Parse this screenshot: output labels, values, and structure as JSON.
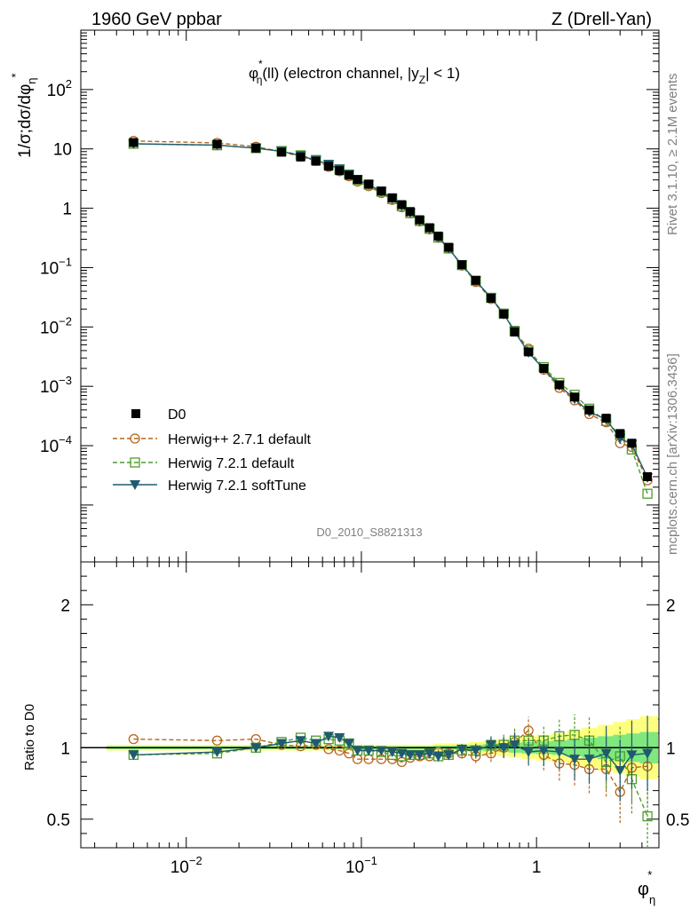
{
  "header": {
    "left": "1960 GeV ppbar",
    "right": "Z (Drell-Yan)"
  },
  "plot_title": {
    "main": "φ",
    "sup": "*",
    "sub": "η",
    "rest": "(ll) (electron channel, |y",
    "sub2": "Z",
    "tail": "| < 1)"
  },
  "axes": {
    "ylabel_main": "1/σ;dσ/dφ",
    "ylabel_sub": "η",
    "ylabel_sup": "*",
    "ratio_ylabel": "Ratio to D0",
    "xlabel_main": "φ",
    "xlabel_sub": "η",
    "xlabel_sup": "*"
  },
  "side_labels": {
    "rivet": "Rivet 3.1.10, ≥ 2.1M events",
    "mcplots": "mcplots.cern.ch [arXiv:1306.3436]"
  },
  "watermark": "D0_2010_S8821313",
  "legend": [
    {
      "label": "D0",
      "color": "#000000",
      "style": "data"
    },
    {
      "label": "Herwig++ 2.7.1 default",
      "color": "#b5651d",
      "style": "circle"
    },
    {
      "label": "Herwig 7.2.1 default",
      "color": "#4d9e2a",
      "style": "square"
    },
    {
      "label": "Herwig 7.2.1 softTune",
      "color": "#1f5b6e",
      "style": "triangle"
    }
  ],
  "chart_data": {
    "type": "line",
    "x_scale": "log",
    "y_scale": "log",
    "xlim": [
      0.0025,
      5.0
    ],
    "ylim": [
      1.1e-06,
      1000
    ],
    "ratio_ylim": [
      0.3,
      2.3
    ],
    "x_tick_labels": [
      "10^-2",
      "10^-1",
      "1"
    ],
    "y_tick_labels": [
      "10^-4",
      "10^-3",
      "10^-2",
      "10^-1",
      "1",
      "10",
      "10^2"
    ],
    "ratio_tick_labels": [
      "0.5",
      "1",
      "2"
    ],
    "x": [
      0.005,
      0.015,
      0.025,
      0.035,
      0.045,
      0.055,
      0.065,
      0.075,
      0.085,
      0.095,
      0.11,
      0.13,
      0.15,
      0.17,
      0.19,
      0.215,
      0.245,
      0.275,
      0.315,
      0.375,
      0.45,
      0.55,
      0.65,
      0.75,
      0.9,
      1.1,
      1.35,
      1.65,
      2.0,
      2.5,
      3.0,
      3.5,
      4.3
    ],
    "series": [
      {
        "name": "D0",
        "values": [
          12.8,
          12.0,
          10.3,
          8.8,
          7.3,
          6.2,
          5.1,
          4.3,
          3.6,
          3.05,
          2.55,
          1.95,
          1.5,
          1.15,
          0.88,
          0.64,
          0.47,
          0.34,
          0.22,
          0.112,
          0.061,
          0.0305,
          0.0165,
          0.0082,
          0.0038,
          0.002,
          0.00106,
          0.00066,
          0.0004,
          0.00029,
          0.00016,
          0.00011,
          3e-05
        ]
      },
      {
        "name": "Herwig++ 2.7.1 default",
        "values": [
          13.6,
          12.6,
          10.9,
          9.0,
          7.4,
          6.3,
          5.0,
          4.2,
          3.45,
          2.8,
          2.35,
          1.8,
          1.38,
          1.04,
          0.82,
          0.6,
          0.44,
          0.33,
          0.21,
          0.108,
          0.057,
          0.0295,
          0.0165,
          0.0085,
          0.0043,
          0.0019,
          0.00094,
          0.00058,
          0.00034,
          0.000247,
          0.00011,
          9.5e-05,
          2.6e-05
        ]
      },
      {
        "name": "Herwig 7.2.1 default",
        "values": [
          12.2,
          11.5,
          10.3,
          9.2,
          7.8,
          6.5,
          5.4,
          4.5,
          3.7,
          3.0,
          2.5,
          1.9,
          1.43,
          1.08,
          0.83,
          0.61,
          0.45,
          0.32,
          0.21,
          0.11,
          0.06,
          0.031,
          0.0168,
          0.0086,
          0.004,
          0.0021,
          0.00114,
          0.00072,
          0.00042,
          0.00026,
          0.00015,
          8.6e-05,
          1.55e-05
        ]
      },
      {
        "name": "Herwig 7.2.1 softTune",
        "values": [
          12.2,
          11.6,
          10.3,
          9.1,
          7.7,
          6.4,
          5.5,
          4.6,
          3.7,
          3.0,
          2.5,
          1.92,
          1.45,
          1.1,
          0.84,
          0.61,
          0.45,
          0.32,
          0.21,
          0.111,
          0.06,
          0.031,
          0.0165,
          0.0084,
          0.0037,
          0.00196,
          0.00103,
          0.00061,
          0.00037,
          0.000278,
          0.000133,
          0.000105,
          2.9e-05
        ]
      }
    ],
    "ratios": [
      {
        "name": "Herwig++ 2.7.1 default",
        "values": [
          1.06,
          1.05,
          1.06,
          1.02,
          1.01,
          1.02,
          0.99,
          0.98,
          0.96,
          0.92,
          0.92,
          0.92,
          0.92,
          0.9,
          0.93,
          0.94,
          0.94,
          0.97,
          0.96,
          0.96,
          0.94,
          0.96,
          1.0,
          1.04,
          1.12,
          0.95,
          0.89,
          0.88,
          0.85,
          0.85,
          0.69,
          0.86,
          0.87
        ]
      },
      {
        "name": "Herwig 7.2.1 default",
        "values": [
          0.95,
          0.96,
          1.0,
          1.04,
          1.07,
          1.05,
          1.06,
          1.05,
          1.03,
          0.98,
          0.98,
          0.97,
          0.95,
          0.94,
          0.95,
          0.95,
          0.96,
          0.94,
          0.95,
          0.98,
          0.98,
          1.02,
          1.02,
          1.05,
          1.05,
          1.05,
          1.08,
          1.09,
          1.05,
          0.9,
          0.94,
          0.78,
          0.52
        ]
      },
      {
        "name": "Herwig 7.2.1 softTune",
        "values": [
          0.95,
          0.97,
          1.0,
          1.03,
          1.05,
          1.03,
          1.08,
          1.07,
          1.03,
          0.98,
          0.98,
          0.98,
          0.97,
          0.96,
          0.95,
          0.95,
          0.96,
          0.94,
          0.95,
          0.99,
          0.98,
          1.02,
          1.0,
          1.02,
          0.97,
          0.98,
          0.97,
          0.92,
          0.92,
          0.96,
          0.84,
          0.95,
          0.96
        ]
      }
    ],
    "ratio_band_yellow": [
      0.02,
      0.02,
      0.02,
      0.02,
      0.02,
      0.02,
      0.02,
      0.02,
      0.02,
      0.02,
      0.02,
      0.02,
      0.02,
      0.02,
      0.02,
      0.02,
      0.02,
      0.03,
      0.03,
      0.03,
      0.04,
      0.05,
      0.06,
      0.07,
      0.08,
      0.09,
      0.1,
      0.12,
      0.14,
      0.16,
      0.18,
      0.2,
      0.22
    ],
    "ratio_band_green": [
      0.01,
      0.01,
      0.01,
      0.01,
      0.01,
      0.01,
      0.01,
      0.01,
      0.01,
      0.01,
      0.01,
      0.01,
      0.01,
      0.01,
      0.01,
      0.01,
      0.01,
      0.015,
      0.015,
      0.015,
      0.02,
      0.025,
      0.03,
      0.035,
      0.04,
      0.045,
      0.05,
      0.06,
      0.07,
      0.08,
      0.09,
      0.1,
      0.11
    ]
  }
}
